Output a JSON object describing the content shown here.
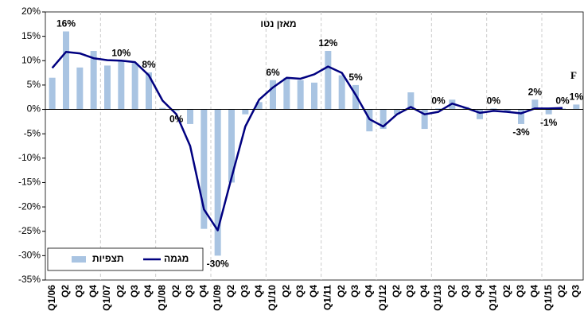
{
  "chart_data": {
    "type": "bar-line",
    "subtitle": "מאזן נטו",
    "annotation": "F",
    "categories": [
      "Q1/06",
      "Q2",
      "Q3",
      "Q4",
      "Q1/07",
      "Q2",
      "Q3",
      "Q4",
      "Q1/08",
      "Q2",
      "Q3",
      "Q4",
      "Q1/09",
      "Q2",
      "Q3",
      "Q4",
      "Q1/10",
      "Q2",
      "Q3",
      "Q4",
      "Q1/11",
      "Q2",
      "Q3",
      "Q4",
      "Q1/12",
      "Q2",
      "Q3",
      "Q4",
      "Q1/13",
      "Q2",
      "Q3",
      "Q4",
      "Q1/14",
      "Q2",
      "Q3",
      "Q4",
      "Q1/15",
      "Q2",
      "Q3"
    ],
    "series": [
      {
        "name": "תצפיות",
        "type": "bar",
        "color": "#a9c4e2",
        "values": [
          6.5,
          16,
          8.6,
          12,
          9,
          10,
          9.5,
          7.6,
          0.3,
          -0.3,
          -3,
          -24.5,
          -30,
          -15,
          -1,
          1.5,
          6,
          6.5,
          6,
          5.5,
          12,
          7,
          5,
          -4.5,
          -4,
          -1,
          3.5,
          -4,
          0.2,
          2,
          0.5,
          -2,
          0.2,
          -0.5,
          -3,
          2,
          -1,
          0.2,
          1
        ],
        "value_labels": [
          null,
          "16%",
          null,
          null,
          null,
          "10%",
          null,
          "8%",
          null,
          "0%",
          null,
          null,
          "-30%",
          null,
          null,
          null,
          "6%",
          null,
          null,
          null,
          "12%",
          null,
          "5%",
          null,
          null,
          null,
          null,
          null,
          "0%",
          null,
          null,
          null,
          "0%",
          null,
          "-3%",
          "2%",
          "-1%",
          "0%",
          "1%"
        ]
      },
      {
        "name": "מגמה",
        "type": "line",
        "color": "#000080",
        "values": [
          8.5,
          11.8,
          11.5,
          10.5,
          10.1,
          10,
          9.7,
          7,
          1.8,
          -1,
          -7.5,
          -20.5,
          -24.8,
          -14,
          -3.5,
          2,
          4.5,
          6.5,
          6.3,
          7.2,
          8.8,
          7.5,
          3,
          -2,
          -3.5,
          -1,
          0.5,
          -1,
          -0.5,
          1.2,
          0.3,
          -0.7,
          -0.3,
          -0.5,
          -0.8,
          0.2,
          0.2,
          0.3,
          null
        ]
      }
    ],
    "ylim": [
      -35,
      20
    ],
    "yticks": [
      {
        "value": -35,
        "label": "-35%"
      },
      {
        "value": -30,
        "label": "-30%"
      },
      {
        "value": -25,
        "label": "-25%"
      },
      {
        "value": -20,
        "label": "-20%"
      },
      {
        "value": -15,
        "label": "-15%"
      },
      {
        "value": -10,
        "label": "-10%"
      },
      {
        "value": -5,
        "label": "-5%"
      },
      {
        "value": 0,
        "label": "0%"
      },
      {
        "value": 5,
        "label": "5%"
      },
      {
        "value": 10,
        "label": "10%"
      },
      {
        "value": 15,
        "label": "15%"
      },
      {
        "value": 20,
        "label": "20%"
      }
    ],
    "legend": "bottom-left"
  }
}
